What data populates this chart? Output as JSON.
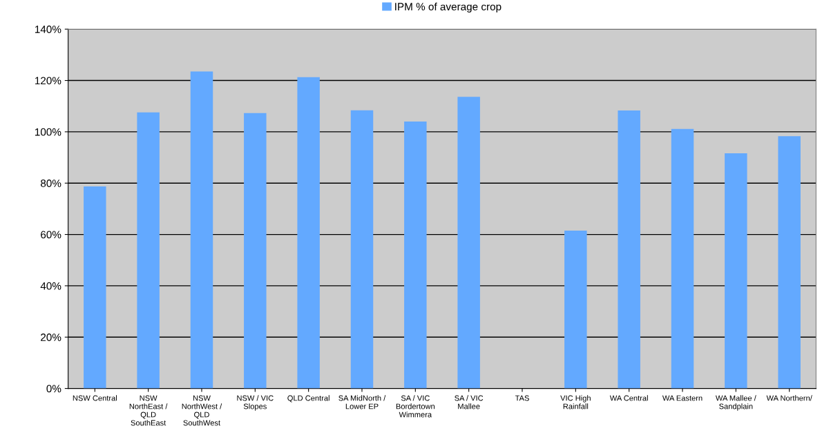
{
  "chart_data": {
    "type": "bar",
    "categories": [
      "NSW Central",
      "NSW\nNorthEast /\nQLD\nSouthEast",
      "NSW\nNorthWest /\nQLD\nSouthWest",
      "NSW / VIC\nSlopes",
      "QLD Central",
      "SA MidNorth /\nLower EP",
      "SA / VIC\nBordertown\nWimmera",
      "SA / VIC\nMallee",
      "TAS",
      "VIC High\nRainfall",
      "WA Central",
      "WA Eastern",
      "WA Mallee /\nSandplain",
      "WA Northern/"
    ],
    "series": [
      {
        "name": "IPM % of average crop",
        "color": "#63a9ff",
        "values": [
          78.7,
          107.6,
          123.5,
          107.3,
          121.3,
          108.4,
          104,
          113.6,
          null,
          61.5,
          108.3,
          101.1,
          91.6,
          98.3
        ]
      }
    ],
    "ylim": [
      0,
      140
    ],
    "yticks": [
      {
        "value": 0,
        "label": "0%"
      },
      {
        "value": 20,
        "label": "20%"
      },
      {
        "value": 40,
        "label": "40%"
      },
      {
        "value": 60,
        "label": "60%"
      },
      {
        "value": 80,
        "label": "80%"
      },
      {
        "value": 100,
        "label": "100%"
      },
      {
        "value": 120,
        "label": "120%"
      },
      {
        "value": 140,
        "label": "140%"
      }
    ],
    "grid": "y",
    "legend": "top"
  }
}
